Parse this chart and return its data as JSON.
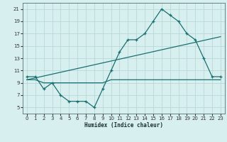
{
  "title": "",
  "xlabel": "Humidex (Indice chaleur)",
  "bg_color": "#d8efef",
  "grid_color": "#b8d8d8",
  "line_color": "#1a7070",
  "xlim": [
    -0.5,
    23.5
  ],
  "ylim": [
    4,
    22
  ],
  "xticks": [
    0,
    1,
    2,
    3,
    4,
    5,
    6,
    7,
    8,
    9,
    10,
    11,
    12,
    13,
    14,
    15,
    16,
    17,
    18,
    19,
    20,
    21,
    22,
    23
  ],
  "yticks": [
    5,
    7,
    9,
    11,
    13,
    15,
    17,
    19,
    21
  ],
  "line1_x": [
    0,
    1,
    2,
    3,
    4,
    5,
    6,
    7,
    8,
    9,
    10,
    11,
    12,
    13,
    14,
    15,
    16,
    17,
    18,
    19,
    20,
    21,
    22,
    23
  ],
  "line1_y": [
    10,
    10,
    8,
    9,
    7,
    6,
    6,
    6,
    5,
    8,
    11,
    14,
    16,
    16,
    17,
    19,
    21,
    20,
    19,
    17,
    16,
    13,
    10,
    10
  ],
  "line2_x": [
    0,
    1,
    2,
    3,
    4,
    5,
    6,
    7,
    8,
    9,
    10,
    11,
    12,
    13,
    14,
    15,
    16,
    17,
    18,
    19,
    20,
    21,
    22,
    23
  ],
  "line2_y": [
    9.5,
    9.5,
    9,
    9,
    9,
    9,
    9,
    9,
    9,
    9,
    9.5,
    9.5,
    9.5,
    9.5,
    9.5,
    9.5,
    9.5,
    9.5,
    9.5,
    9.5,
    9.5,
    9.5,
    9.5,
    9.5
  ],
  "line3_x": [
    0,
    23
  ],
  "line3_y": [
    9.5,
    16.5
  ]
}
